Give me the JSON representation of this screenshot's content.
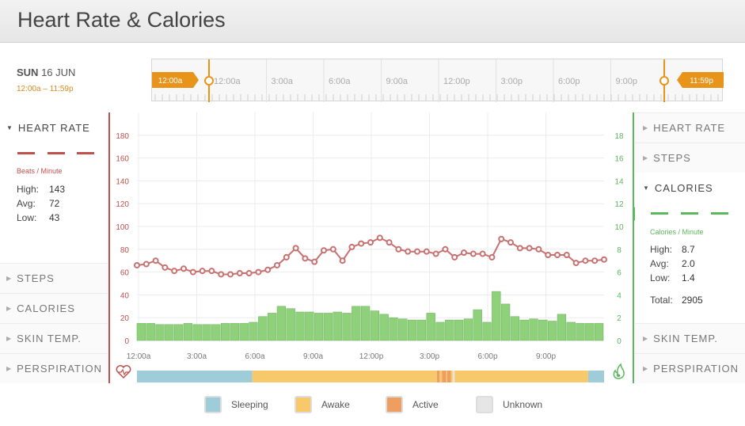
{
  "title": "Heart Rate & Calories",
  "date": {
    "day": "SUN",
    "date": "16 JUN",
    "range": "12:00a – 11:59p"
  },
  "timeline": {
    "start_label": "12:00a",
    "end_label": "11:59p",
    "ticks": [
      "12:00a",
      "3:00a",
      "6:00a",
      "9:00a",
      "12:00p",
      "3:00p",
      "6:00p",
      "9:00p"
    ],
    "accent": "#e8941a"
  },
  "left_panel": {
    "heart_rate_label": "HEART RATE",
    "unit": "Beats / Minute",
    "high_label": "High:",
    "high": "143",
    "avg_label": "Avg:",
    "avg": "72",
    "low_label": "Low:",
    "low": "43",
    "steps_label": "STEPS",
    "calories_label": "CALORIES",
    "skin_label": "SKIN TEMP.",
    "perspiration_label": "PERSPIRATION",
    "color": "#c0504d"
  },
  "right_panel": {
    "heart_rate_label": "HEART RATE",
    "steps_label": "STEPS",
    "calories_label": "CALORIES",
    "unit": "Calories / Minute",
    "high_label": "High:",
    "high": "8.7",
    "avg_label": "Avg:",
    "avg": "2.0",
    "low_label": "Low:",
    "low": "1.4",
    "total_label": "Total:",
    "total": "2905",
    "skin_label": "SKIN TEMP.",
    "perspiration_label": "PERSPIRATION",
    "color": "#5cb85c"
  },
  "legend": [
    {
      "label": "Sleeping",
      "color": "#9ecdd9"
    },
    {
      "label": "Awake",
      "color": "#f7c96b"
    },
    {
      "label": "Active",
      "color": "#ee9f5f"
    },
    {
      "label": "Unknown",
      "color": "#e6e6e6"
    }
  ],
  "chart_data": {
    "type": "line",
    "x_tick_labels": [
      "12:00a",
      "3:00a",
      "6:00a",
      "9:00a",
      "12:00p",
      "3:00p",
      "6:00p",
      "9:00p"
    ],
    "left_axis": {
      "ylim": [
        0,
        200
      ],
      "ticks": [
        0,
        20,
        40,
        60,
        80,
        100,
        120,
        140,
        160,
        180
      ],
      "color": "#c0504d"
    },
    "right_axis": {
      "ylim": [
        0,
        20
      ],
      "ticks": [
        0,
        2,
        4,
        6,
        8,
        10,
        12,
        14,
        16,
        18
      ],
      "color": "#5cb85c"
    },
    "series": [
      {
        "type": "line",
        "axis": "left",
        "color": "#c87070",
        "values": [
          66,
          67,
          70,
          64,
          61,
          63,
          60,
          61,
          61,
          58,
          58,
          59,
          59,
          60,
          62,
          66,
          73,
          81,
          72,
          69,
          79,
          80,
          70,
          82,
          85,
          86,
          90,
          86,
          80,
          78,
          78,
          78,
          76,
          80,
          73,
          77,
          76,
          76,
          73,
          89,
          86,
          81,
          81,
          80,
          75,
          75,
          75,
          68,
          70,
          70,
          71
        ]
      },
      {
        "type": "bar",
        "axis": "right",
        "color": "#8fd07a",
        "values": [
          1.5,
          1.5,
          1.4,
          1.4,
          1.4,
          1.5,
          1.4,
          1.4,
          1.4,
          1.5,
          1.5,
          1.5,
          1.6,
          2.1,
          2.4,
          3.0,
          2.8,
          2.5,
          2.5,
          2.4,
          2.4,
          2.5,
          2.4,
          3.0,
          3.0,
          2.6,
          2.3,
          2.0,
          1.9,
          1.8,
          1.8,
          2.4,
          1.6,
          1.8,
          1.8,
          1.9,
          2.7,
          1.6,
          4.3,
          3.2,
          2.1,
          1.8,
          1.9,
          1.8,
          1.7,
          2.3,
          1.6,
          1.5,
          1.5,
          1.5
        ]
      }
    ],
    "activity_strip": [
      {
        "state": "Sleeping",
        "start": 0,
        "end": 0.247
      },
      {
        "state": "Awake",
        "start": 0.247,
        "end": 0.642
      },
      {
        "state": "Active",
        "start": 0.642,
        "end": 0.648
      },
      {
        "state": "Awake",
        "start": 0.648,
        "end": 0.653
      },
      {
        "state": "Active",
        "start": 0.653,
        "end": 0.662
      },
      {
        "state": "Awake",
        "start": 0.662,
        "end": 0.664
      },
      {
        "state": "Active",
        "start": 0.664,
        "end": 0.672
      },
      {
        "state": "Awake",
        "start": 0.672,
        "end": 0.676
      },
      {
        "state": "Unknown",
        "start": 0.676,
        "end": 0.68
      },
      {
        "state": "Awake",
        "start": 0.68,
        "end": 0.966
      },
      {
        "state": "Sleeping",
        "start": 0.966,
        "end": 1
      }
    ]
  }
}
